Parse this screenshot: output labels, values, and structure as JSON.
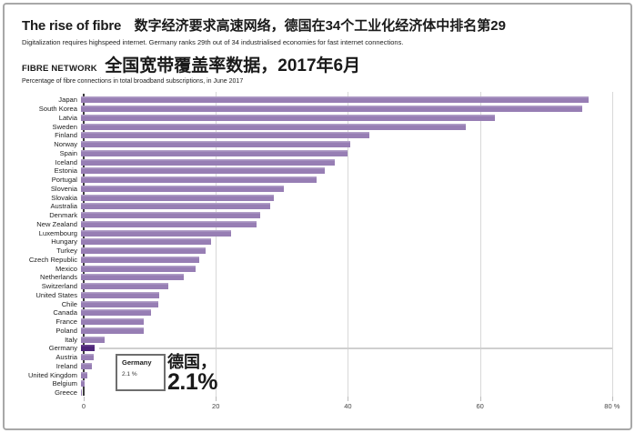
{
  "header": {
    "title_en": "The rise of fibre",
    "title_zh": "数字经济要求高速网络，德国在34个工业化经济体中排名第29",
    "subtitle": "Digitalization requires highspeed internet. Germany ranks 29th out of 34 industrialised economies for fast internet connections.",
    "section_label": "FIBRE NETWORK",
    "section_title_zh": "全国宽带覆盖率数据，2017年6月",
    "section_subtitle": "Percentage of fibre connections in total broadband subscriptions, in June 2017"
  },
  "chart_data": {
    "type": "bar",
    "orientation": "horizontal",
    "title": "FIBRE NETWORK 全国宽带覆盖率数据，2017年6月",
    "xlabel": "Percentage of fibre connections in total broadband subscriptions",
    "categories": [
      "Japan",
      "South Korea",
      "Latvia",
      "Sweden",
      "Finland",
      "Norway",
      "Spain",
      "Iceland",
      "Estonia",
      "Portugal",
      "Slovenia",
      "Slovakia",
      "Australia",
      "Denmark",
      "New Zealand",
      "Luxembourg",
      "Hungary",
      "Turkey",
      "Czech Republic",
      "Mexico",
      "Netherlands",
      "Switzerland",
      "United States",
      "Chile",
      "Canada",
      "France",
      "Poland",
      "Italy",
      "Germany",
      "Austria",
      "Ireland",
      "United Kingdom",
      "Belgium",
      "Greece"
    ],
    "values": [
      76.5,
      75.5,
      62.3,
      58.0,
      43.5,
      40.5,
      40.2,
      38.2,
      36.7,
      35.5,
      30.5,
      29.0,
      28.5,
      27.0,
      26.4,
      22.6,
      19.6,
      18.8,
      17.8,
      17.2,
      15.5,
      13.2,
      11.8,
      11.6,
      10.5,
      9.5,
      9.4,
      3.6,
      2.1,
      1.9,
      1.6,
      0.9,
      0.5,
      0.2
    ],
    "xlim": [
      0,
      82.5
    ],
    "xticks": [
      0,
      20,
      40,
      60,
      80
    ],
    "xtick_labels": [
      "0",
      "20",
      "40",
      "60",
      "80 %"
    ],
    "grid": "vertical",
    "legend": "none",
    "highlight_category": "Germany",
    "colors": {
      "bar": "#977eb4",
      "highlight": "#4d2579",
      "gridline": "#d8d8d8",
      "axis": "#3d3d3d"
    },
    "annotation": {
      "box_label": "Germany",
      "box_value": "2.1 %",
      "big_text_line1": "德国，",
      "big_text_line2": "2.1%"
    }
  }
}
